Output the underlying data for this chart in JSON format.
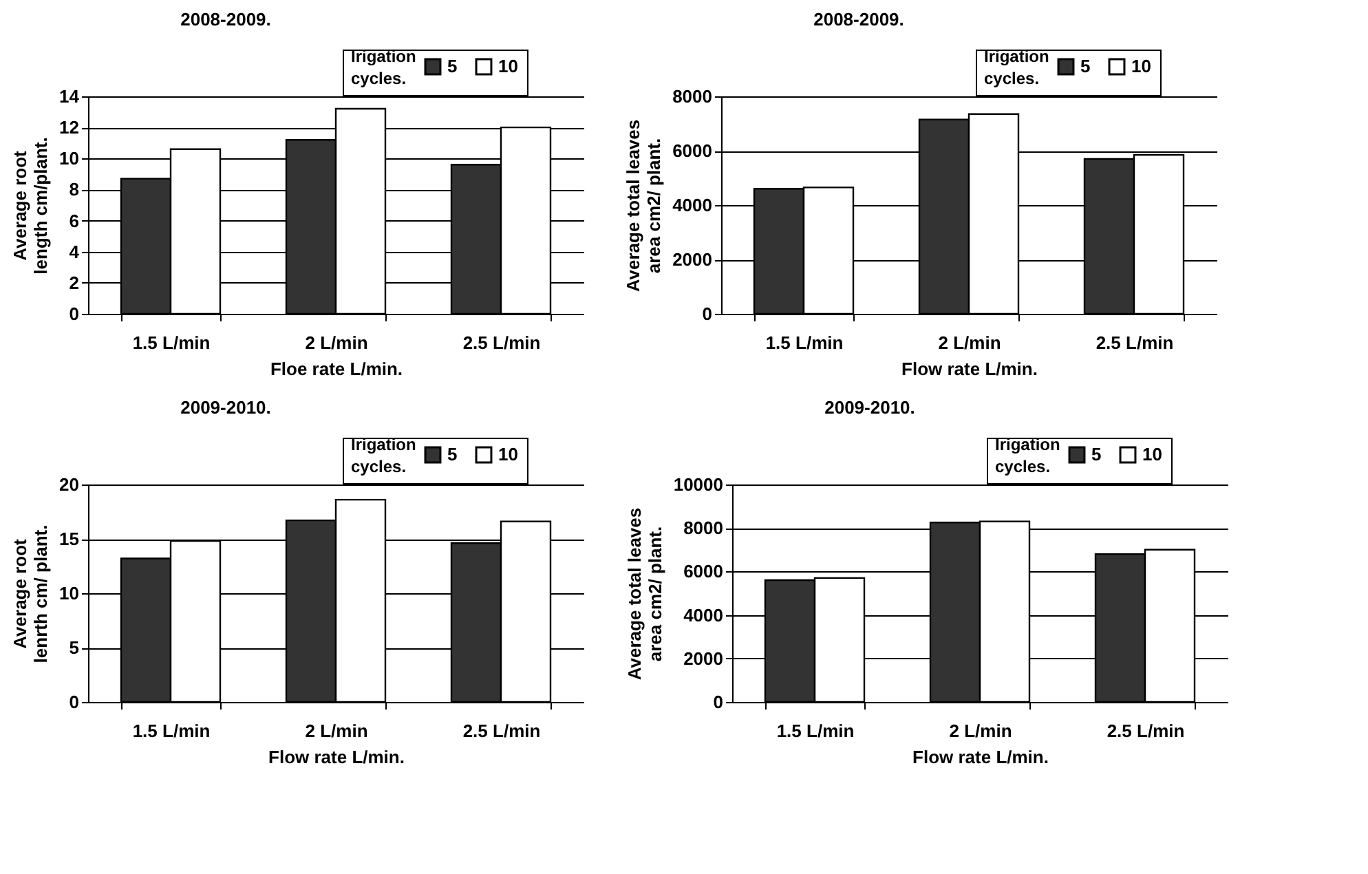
{
  "chart_data": [
    {
      "type": "bar",
      "title": "2008-2009.",
      "xlabel": "Floe rate L/min.",
      "ylabel": "Average root length cm/plant.",
      "legend_title": "Irigation cycles.",
      "categories": [
        "1.5 L/min",
        "2 L/min",
        "2.5 L/min"
      ],
      "series": [
        {
          "name": "5",
          "color": "#333333",
          "values": [
            8.7,
            11.2,
            9.6
          ]
        },
        {
          "name": "10",
          "color": "#ffffff",
          "values": [
            10.6,
            13.2,
            12.0
          ]
        }
      ],
      "ylim": [
        0,
        14
      ],
      "yticks": [
        0,
        2,
        4,
        6,
        8,
        10,
        12,
        14
      ],
      "grid": "y",
      "legend": "top right"
    },
    {
      "type": "bar",
      "title": "2008-2009.",
      "xlabel": "Flow rate L/min.",
      "ylabel": "Average total leaves area cm2/ plant.",
      "legend_title": "Irigation cycles.",
      "categories": [
        "1.5 L/min",
        "2 L/min",
        "2.5 L/min"
      ],
      "series": [
        {
          "name": "5",
          "color": "#333333",
          "values": [
            4600,
            7150,
            5700
          ]
        },
        {
          "name": "10",
          "color": "#ffffff",
          "values": [
            4650,
            7350,
            5850
          ]
        }
      ],
      "ylim": [
        0,
        8000
      ],
      "yticks": [
        0,
        2000,
        4000,
        6000,
        8000
      ],
      "grid": "y",
      "legend": "top right"
    },
    {
      "type": "bar",
      "title": "2009-2010.",
      "xlabel": "Flow rate L/min.",
      "ylabel": "Average root lenrth cm/ plant.",
      "legend_title": "Irigation cycles.",
      "categories": [
        "1.5 L/min",
        "2 L/min",
        "2.5 L/min"
      ],
      "series": [
        {
          "name": "5",
          "color": "#333333",
          "values": [
            13.2,
            16.7,
            14.6
          ]
        },
        {
          "name": "10",
          "color": "#ffffff",
          "values": [
            14.8,
            18.6,
            16.6
          ]
        }
      ],
      "ylim": [
        0,
        20
      ],
      "yticks": [
        0,
        5,
        10,
        15,
        20
      ],
      "grid": "y",
      "legend": "top right"
    },
    {
      "type": "bar",
      "title": "2009-2010.",
      "xlabel": "Flow rate L/min.",
      "ylabel": "Average total leaves area cm2/ plant.",
      "legend_title": "Irigation cycles.",
      "categories": [
        "1.5 L/min",
        "2 L/min",
        "2.5 L/min"
      ],
      "series": [
        {
          "name": "5",
          "color": "#333333",
          "values": [
            5600,
            8250,
            6800
          ]
        },
        {
          "name": "10",
          "color": "#ffffff",
          "values": [
            5700,
            8300,
            7000
          ]
        }
      ],
      "ylim": [
        0,
        10000
      ],
      "yticks": [
        0,
        2000,
        4000,
        6000,
        8000,
        10000
      ],
      "grid": "y",
      "legend": "top right"
    }
  ]
}
